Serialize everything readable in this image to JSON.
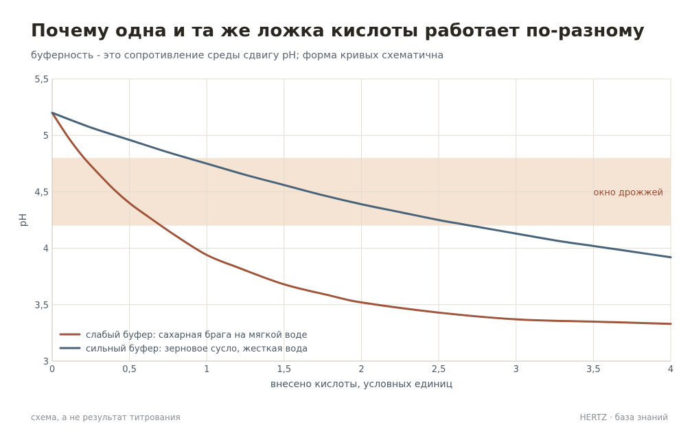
{
  "title": "Почему одна и та же ложка кислоты работает по-разному",
  "subtitle": "буферность - это сопротивление среды сдвигу pH; форма кривых схематична",
  "footer": {
    "left": "схема, а не результат титрования",
    "right": "HERTZ · база знаний"
  },
  "chart_data": {
    "type": "line",
    "xlabel": "внесено кислоты, условных единиц",
    "ylabel": "pH",
    "xlim": [
      0,
      4
    ],
    "ylim": [
      3,
      5.5
    ],
    "x_ticks": [
      0,
      0.5,
      1,
      1.5,
      2,
      2.5,
      3,
      3.5,
      4
    ],
    "x_tick_labels": [
      "0",
      "0,5",
      "1",
      "1,5",
      "2",
      "2,5",
      "3",
      "3,5",
      "4"
    ],
    "y_ticks": [
      3,
      3.5,
      4,
      4.5,
      5,
      5.5
    ],
    "y_tick_labels": [
      "3",
      "3,5",
      "4",
      "4,5",
      "5",
      "5,5"
    ],
    "grid": true,
    "legend_position": "bottom-left",
    "band": {
      "y_from": 4.2,
      "y_to": 4.8,
      "label": "окно дрожжей",
      "color": "#f5e3d3",
      "label_color": "#9a4a32"
    },
    "series": [
      {
        "name": "слабый буфер: сахарная брага на мягкой воде",
        "color": "#a0553a",
        "x": [
          0,
          0.1,
          0.2,
          0.3,
          0.4,
          0.5,
          0.6,
          0.8,
          1.0,
          1.2,
          1.5,
          1.8,
          2.0,
          2.5,
          3.0,
          3.5,
          4.0
        ],
        "y": [
          5.2,
          4.99,
          4.81,
          4.66,
          4.52,
          4.4,
          4.3,
          4.11,
          3.94,
          3.83,
          3.68,
          3.58,
          3.52,
          3.43,
          3.37,
          3.35,
          3.33
        ]
      },
      {
        "name": "сильный буфер: зерновое сусло, жесткая вода",
        "color": "#48637a",
        "x": [
          0,
          0.25,
          0.5,
          0.75,
          1.0,
          1.25,
          1.5,
          1.75,
          2.0,
          2.25,
          2.5,
          2.75,
          3.0,
          3.25,
          3.5,
          3.75,
          4.0
        ],
        "y": [
          5.2,
          5.07,
          4.96,
          4.85,
          4.75,
          4.65,
          4.56,
          4.47,
          4.39,
          4.32,
          4.25,
          4.19,
          4.13,
          4.07,
          4.02,
          3.97,
          3.92
        ]
      }
    ]
  }
}
